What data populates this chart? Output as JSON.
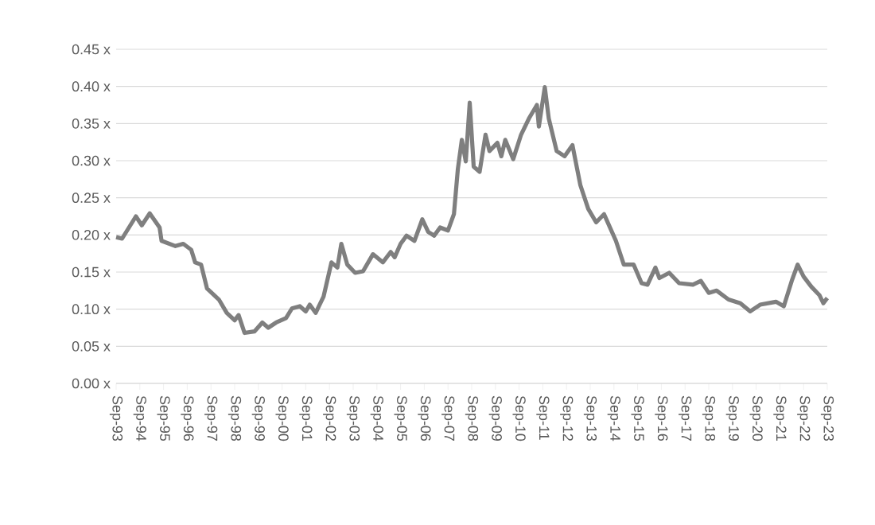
{
  "chart_data": {
    "type": "line",
    "color": "#7f7f7f",
    "grid": "y",
    "marker": "none",
    "line_style": "solid",
    "x": [
      "1993-09",
      "1993-12",
      "1994-07",
      "1994-10",
      "1995-02",
      "1995-07",
      "1995-08",
      "1996-03",
      "1996-07",
      "1996-11",
      "1997-01",
      "1997-04",
      "1997-07",
      "1998-01",
      "1998-05",
      "1998-09",
      "1998-11",
      "1999-02",
      "1999-07",
      "1999-11",
      "2000-02",
      "2000-06",
      "2000-11",
      "2001-02",
      "2001-06",
      "2001-09",
      "2001-11",
      "2002-02",
      "2002-06",
      "2002-10",
      "2003-01",
      "2003-03",
      "2003-06",
      "2003-10",
      "2004-02",
      "2004-07",
      "2004-12",
      "2005-04",
      "2005-06",
      "2005-09",
      "2005-12",
      "2006-04",
      "2006-08",
      "2006-11",
      "2007-02",
      "2007-05",
      "2007-09",
      "2007-12",
      "2008-02",
      "2008-04",
      "2008-06",
      "2008-08",
      "2008-10",
      "2009-01",
      "2009-04",
      "2009-06",
      "2009-10",
      "2009-12",
      "2010-02",
      "2010-06",
      "2010-10",
      "2011-02",
      "2011-06",
      "2011-07",
      "2011-10",
      "2011-12",
      "2012-04",
      "2012-08",
      "2012-12",
      "2013-04",
      "2013-08",
      "2013-12",
      "2014-04",
      "2014-10",
      "2015-02",
      "2015-07",
      "2015-11",
      "2016-02",
      "2016-06",
      "2016-08",
      "2017-01",
      "2017-06",
      "2018-01",
      "2018-05",
      "2018-09",
      "2019-01",
      "2019-07",
      "2020-01",
      "2020-06",
      "2020-11",
      "2021-07",
      "2021-11",
      "2022-03",
      "2022-06",
      "2022-09",
      "2023-01",
      "2023-05",
      "2023-07",
      "2023-09"
    ],
    "values": [
      0.197,
      0.195,
      0.225,
      0.213,
      0.229,
      0.21,
      0.192,
      0.185,
      0.188,
      0.18,
      0.163,
      0.16,
      0.128,
      0.113,
      0.095,
      0.085,
      0.092,
      0.068,
      0.07,
      0.082,
      0.075,
      0.082,
      0.088,
      0.101,
      0.104,
      0.097,
      0.106,
      0.095,
      0.117,
      0.163,
      0.156,
      0.188,
      0.16,
      0.149,
      0.151,
      0.174,
      0.163,
      0.177,
      0.17,
      0.188,
      0.199,
      0.192,
      0.221,
      0.204,
      0.199,
      0.21,
      0.206,
      0.228,
      0.289,
      0.328,
      0.299,
      0.378,
      0.292,
      0.285,
      0.335,
      0.313,
      0.324,
      0.306,
      0.328,
      0.302,
      0.335,
      0.357,
      0.375,
      0.346,
      0.399,
      0.357,
      0.313,
      0.306,
      0.321,
      0.267,
      0.235,
      0.217,
      0.228,
      0.192,
      0.16,
      0.16,
      0.135,
      0.133,
      0.156,
      0.142,
      0.149,
      0.135,
      0.133,
      0.138,
      0.122,
      0.125,
      0.113,
      0.108,
      0.097,
      0.106,
      0.11,
      0.104,
      0.138,
      0.16,
      0.144,
      0.13,
      0.119,
      0.108,
      0.115
    ],
    "xlim": [
      "1993-09",
      "2023-09"
    ],
    "xticks": [
      {
        "value": "1993-09",
        "label": "Sep-93"
      },
      {
        "value": "1994-09",
        "label": "Sep-94"
      },
      {
        "value": "1995-09",
        "label": "Sep-95"
      },
      {
        "value": "1996-09",
        "label": "Sep-96"
      },
      {
        "value": "1997-09",
        "label": "Sep-97"
      },
      {
        "value": "1998-09",
        "label": "Sep-98"
      },
      {
        "value": "1999-09",
        "label": "Sep-99"
      },
      {
        "value": "2000-09",
        "label": "Sep-00"
      },
      {
        "value": "2001-09",
        "label": "Sep-01"
      },
      {
        "value": "2002-09",
        "label": "Sep-02"
      },
      {
        "value": "2003-09",
        "label": "Sep-03"
      },
      {
        "value": "2004-09",
        "label": "Sep-04"
      },
      {
        "value": "2005-09",
        "label": "Sep-05"
      },
      {
        "value": "2006-09",
        "label": "Sep-06"
      },
      {
        "value": "2007-09",
        "label": "Sep-07"
      },
      {
        "value": "2008-09",
        "label": "Sep-08"
      },
      {
        "value": "2009-09",
        "label": "Sep-09"
      },
      {
        "value": "2010-09",
        "label": "Sep-10"
      },
      {
        "value": "2011-09",
        "label": "Sep-11"
      },
      {
        "value": "2012-09",
        "label": "Sep-12"
      },
      {
        "value": "2013-09",
        "label": "Sep-13"
      },
      {
        "value": "2014-09",
        "label": "Sep-14"
      },
      {
        "value": "2015-09",
        "label": "Sep-15"
      },
      {
        "value": "2016-09",
        "label": "Sep-16"
      },
      {
        "value": "2017-09",
        "label": "Sep-17"
      },
      {
        "value": "2018-09",
        "label": "Sep-18"
      },
      {
        "value": "2019-09",
        "label": "Sep-19"
      },
      {
        "value": "2020-09",
        "label": "Sep-20"
      },
      {
        "value": "2021-09",
        "label": "Sep-21"
      },
      {
        "value": "2022-09",
        "label": "Sep-22"
      },
      {
        "value": "2023-09",
        "label": "Sep-23"
      }
    ],
    "ylim": [
      0,
      0.45
    ],
    "yticks": [
      {
        "value": 0,
        "label": "0.00 x"
      },
      {
        "value": 0.05,
        "label": "0.05 x"
      },
      {
        "value": 0.1,
        "label": "0.10 x"
      },
      {
        "value": 0.15,
        "label": "0.15 x"
      },
      {
        "value": 0.2,
        "label": "0.20 x"
      },
      {
        "value": 0.25,
        "label": "0.25 x"
      },
      {
        "value": 0.3,
        "label": "0.30 x"
      },
      {
        "value": 0.35,
        "label": "0.35 x"
      },
      {
        "value": 0.4,
        "label": "0.40 x"
      },
      {
        "value": 0.45,
        "label": "0.45 x"
      }
    ]
  }
}
